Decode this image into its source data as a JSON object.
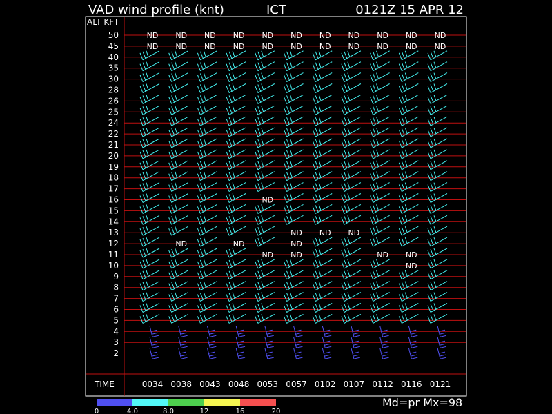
{
  "header": {
    "title": "VAD wind profile (knt)",
    "station": "ICT",
    "datetime": "0121Z 15 APR 12"
  },
  "footer": {
    "mode_text": "Md=pr Mx=98"
  },
  "colors": {
    "background": "#000000",
    "frame": "#ffffff",
    "gridline": "#c01010",
    "scale": [
      "#4f4ff0",
      "#52f7f7",
      "#4ecf4e",
      "#f5f551",
      "#f55050"
    ],
    "default_barb": "#45f0f0"
  },
  "chart_data": {
    "type": "wind-profile",
    "ylabel": "ALT KFT",
    "xlabel": "TIME",
    "altitudes": [
      "50",
      "45",
      "40",
      "35",
      "30",
      "28",
      "26",
      "25",
      "24",
      "22",
      "21",
      "20",
      "19",
      "18",
      "17",
      "16",
      "15",
      "14",
      "13",
      "12",
      "11",
      "10",
      "9",
      "8",
      "7",
      "6",
      "5",
      "4",
      "3",
      "2"
    ],
    "times": [
      "0034",
      "0038",
      "0043",
      "0048",
      "0053",
      "0057",
      "0102",
      "0107",
      "0112",
      "0116",
      "0121"
    ],
    "nd_label": "ND",
    "no_data": [
      [
        "50",
        "0034"
      ],
      [
        "50",
        "0038"
      ],
      [
        "50",
        "0043"
      ],
      [
        "50",
        "0048"
      ],
      [
        "50",
        "0053"
      ],
      [
        "50",
        "0057"
      ],
      [
        "50",
        "0102"
      ],
      [
        "50",
        "0107"
      ],
      [
        "50",
        "0112"
      ],
      [
        "50",
        "0116"
      ],
      [
        "50",
        "0121"
      ],
      [
        "45",
        "0034"
      ],
      [
        "45",
        "0038"
      ],
      [
        "45",
        "0043"
      ],
      [
        "45",
        "0048"
      ],
      [
        "45",
        "0053"
      ],
      [
        "45",
        "0057"
      ],
      [
        "45",
        "0102"
      ],
      [
        "45",
        "0107"
      ],
      [
        "45",
        "0112"
      ],
      [
        "45",
        "0116"
      ],
      [
        "45",
        "0121"
      ],
      [
        "16",
        "0053"
      ],
      [
        "13",
        "0057"
      ],
      [
        "13",
        "0102"
      ],
      [
        "13",
        "0107"
      ],
      [
        "12",
        "0038"
      ],
      [
        "12",
        "0048"
      ],
      [
        "12",
        "0057"
      ],
      [
        "11",
        "0053"
      ],
      [
        "11",
        "0057"
      ],
      [
        "11",
        "0112"
      ],
      [
        "11",
        "0116"
      ],
      [
        "10",
        "0116"
      ]
    ],
    "colorbar": {
      "ticks": [
        "0",
        "4.0",
        "8.0",
        "12",
        "16",
        "20"
      ],
      "colors": [
        "#4f4ff0",
        "#52f7f7",
        "#4ecf4e",
        "#f5f551",
        "#f55050"
      ]
    },
    "barb_colors_by_altitude": {
      "50": "",
      "45": "",
      "40": "#45f0f0",
      "35": "#45f0f0",
      "30": "#45f0f0",
      "28": "#45f0f0",
      "26": "#45f0f0",
      "25": "#45f0f0",
      "24": "#45f0f0",
      "22": "#45f0f0",
      "21": "#45f0f0",
      "20": "#45f0f0",
      "19": "#45f0f0",
      "18": "#45f0f0",
      "17": "#45f0f0",
      "16": "#45f0f0",
      "15": "#45f0f0",
      "14": "#45f0f0",
      "13": "#45f0f0",
      "12": "#45f0f0",
      "11": "#45f0f0",
      "10": "#45f0f0",
      "9": "#45f0f0",
      "8": "#45f0f0",
      "7": "#45f0f0",
      "6": "#45f0f0",
      "5": "#45f0f0",
      "4": "#4f4ff0",
      "3": "#4f4ff0",
      "2": "#4f4ff0"
    }
  }
}
